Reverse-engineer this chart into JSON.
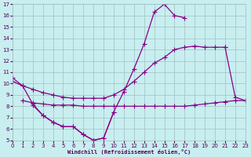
{
  "background_color": "#c8eef0",
  "grid_color": "#a0c0c0",
  "line_color": "#880088",
  "xlabel": "Windchill (Refroidissement éolien,°C)",
  "xlabel_color": "#550055",
  "tick_color": "#550055",
  "xlim": [
    0,
    23
  ],
  "ylim": [
    5,
    17
  ],
  "xticks": [
    0,
    1,
    2,
    3,
    4,
    5,
    6,
    7,
    8,
    9,
    10,
    11,
    12,
    13,
    14,
    15,
    16,
    17,
    18,
    19,
    20,
    21,
    22,
    23
  ],
  "yticks": [
    5,
    6,
    7,
    8,
    9,
    10,
    11,
    12,
    13,
    14,
    15,
    16,
    17
  ],
  "curve1_x": [
    0,
    1,
    2,
    3,
    4,
    5,
    6,
    7,
    8,
    9,
    10,
    11,
    12,
    13,
    14,
    15,
    16,
    17
  ],
  "curve1_y": [
    10.5,
    9.8,
    8.2,
    7.2,
    6.6,
    6.2,
    6.2,
    5.5,
    5.0,
    5.2,
    7.5,
    9.3,
    11.3,
    13.5,
    16.3,
    17.0,
    16.0,
    15.8
  ],
  "curve2_x": [
    0,
    1,
    2,
    3,
    4,
    5,
    6,
    7,
    8,
    9,
    10,
    11,
    12,
    13,
    14,
    15,
    16,
    17,
    18,
    19,
    20,
    21
  ],
  "curve2_y": [
    10.2,
    9.8,
    9.5,
    9.2,
    9.0,
    8.8,
    8.7,
    8.7,
    8.7,
    8.7,
    9.0,
    9.5,
    10.2,
    11.0,
    11.8,
    12.3,
    13.0,
    13.2,
    13.3,
    13.2,
    13.2,
    13.2
  ],
  "curve3_x": [
    1,
    2,
    3,
    4,
    5,
    6,
    7,
    8,
    9,
    10,
    11,
    12,
    13,
    14,
    15,
    16,
    17,
    18,
    19,
    20,
    21,
    22,
    23
  ],
  "curve3_y": [
    8.5,
    8.3,
    8.2,
    8.1,
    8.1,
    8.1,
    8.0,
    8.0,
    8.0,
    8.0,
    8.0,
    8.0,
    8.0,
    8.0,
    8.0,
    8.0,
    8.0,
    8.1,
    8.2,
    8.3,
    8.4,
    8.5,
    8.5
  ],
  "curve4_x": [
    2,
    3,
    4,
    5,
    6,
    7,
    8,
    9,
    10
  ],
  "curve4_y": [
    8.1,
    7.2,
    6.6,
    6.2,
    6.2,
    5.5,
    5.0,
    5.2,
    7.5
  ],
  "curve5_x": [
    21,
    22,
    23
  ],
  "curve5_y": [
    13.2,
    8.8,
    8.5
  ]
}
